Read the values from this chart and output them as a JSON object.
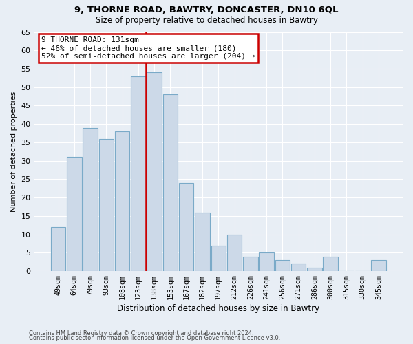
{
  "title1": "9, THORNE ROAD, BAWTRY, DONCASTER, DN10 6QL",
  "title2": "Size of property relative to detached houses in Bawtry",
  "xlabel": "Distribution of detached houses by size in Bawtry",
  "ylabel": "Number of detached properties",
  "categories": [
    "49sqm",
    "64sqm",
    "79sqm",
    "93sqm",
    "108sqm",
    "123sqm",
    "138sqm",
    "153sqm",
    "167sqm",
    "182sqm",
    "197sqm",
    "212sqm",
    "226sqm",
    "241sqm",
    "256sqm",
    "271sqm",
    "286sqm",
    "300sqm",
    "315sqm",
    "330sqm",
    "345sqm"
  ],
  "values": [
    12,
    31,
    39,
    36,
    38,
    53,
    54,
    48,
    24,
    16,
    7,
    10,
    4,
    5,
    3,
    2,
    1,
    4,
    0,
    0,
    3
  ],
  "bar_color": "#ccd9e8",
  "bar_edge_color": "#7aaac8",
  "red_line_color": "#cc0000",
  "annotation_text": "9 THORNE ROAD: 131sqm\n← 46% of detached houses are smaller (180)\n52% of semi-detached houses are larger (204) →",
  "annotation_box_color": "#ffffff",
  "annotation_box_edge": "#cc0000",
  "ylim": [
    0,
    65
  ],
  "yticks": [
    0,
    5,
    10,
    15,
    20,
    25,
    30,
    35,
    40,
    45,
    50,
    55,
    60,
    65
  ],
  "footer1": "Contains HM Land Registry data © Crown copyright and database right 2024.",
  "footer2": "Contains public sector information licensed under the Open Government Licence v3.0.",
  "bg_color": "#e8eef5",
  "plot_bg_color": "#e8eef5",
  "grid_color": "#ffffff",
  "title1_fontsize": 9.5,
  "title2_fontsize": 8.5,
  "ylabel_fontsize": 8,
  "xlabel_fontsize": 8.5,
  "tick_fontsize": 8,
  "xtick_fontsize": 7.2,
  "annot_fontsize": 8,
  "footer_fontsize": 6
}
